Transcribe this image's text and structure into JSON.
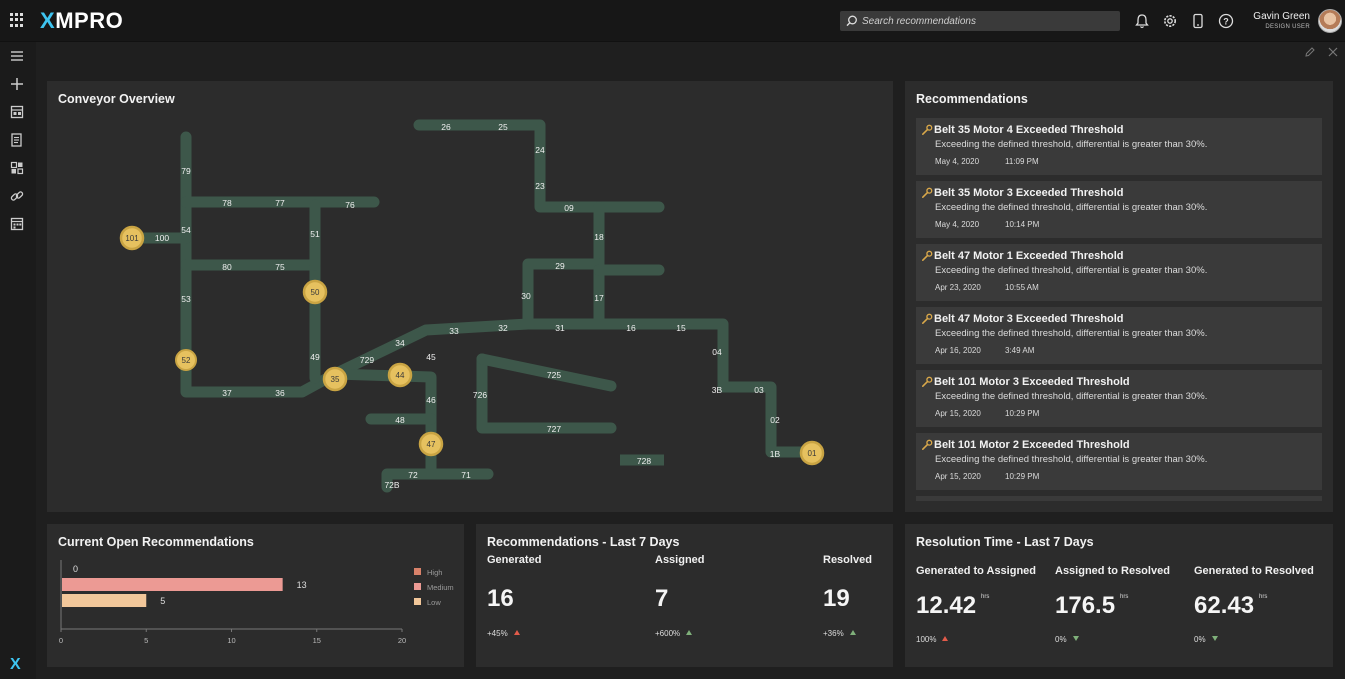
{
  "header": {
    "logo": "XMPRO",
    "search_placeholder": "Search recommendations",
    "user_name": "Gavin Green",
    "user_role": "DESIGN USER"
  },
  "icons": {
    "apps": "grid-icon",
    "search": "search-icon",
    "notifications": "bell-icon",
    "settings": "gear-icon",
    "device": "mobile-icon",
    "help": "help-icon",
    "edit": "pencil-icon",
    "close": "close-icon"
  },
  "sidebar": {
    "items": [
      "menu-icon",
      "add-icon",
      "dashboard-icon",
      "document-icon",
      "widgets-icon",
      "link-icon",
      "calendar-icon"
    ],
    "bottom_logo": "X"
  },
  "conveyor": {
    "title": "Conveyor Overview",
    "labels": [
      "26",
      "25",
      "24",
      "23",
      "09",
      "18",
      "29",
      "30",
      "17",
      "79",
      "78",
      "77",
      "76",
      "54",
      "51",
      "100",
      "80",
      "75",
      "53",
      "49",
      "34",
      "33",
      "32",
      "31",
      "16",
      "15",
      "04",
      "729",
      "45",
      "725",
      "726",
      "3B",
      "03",
      "37",
      "36",
      "46",
      "48",
      "727",
      "02",
      "72",
      "71",
      "728",
      "1B",
      "72B"
    ],
    "nodes": [
      "101",
      "50",
      "52",
      "35",
      "44",
      "47",
      "01"
    ]
  },
  "recommendations": {
    "title": "Recommendations",
    "items": [
      {
        "title": "Belt 35 Motor 4 Exceeded Threshold",
        "desc": "Exceeding the defined threshold, differential is greater than 30%.",
        "date": "May 4, 2020",
        "time": "11:09 PM"
      },
      {
        "title": "Belt 35 Motor 3 Exceeded Threshold",
        "desc": "Exceeding the defined threshold, differential is greater than 30%.",
        "date": "May 4, 2020",
        "time": "10:14 PM"
      },
      {
        "title": "Belt 47 Motor 1 Exceeded Threshold",
        "desc": "Exceeding the defined threshold, differential is greater than 30%.",
        "date": "Apr 23, 2020",
        "time": "10:55 AM"
      },
      {
        "title": "Belt 47 Motor 3 Exceeded Threshold",
        "desc": "Exceeding the defined threshold, differential is greater than 30%.",
        "date": "Apr 16, 2020",
        "time": "3:49 AM"
      },
      {
        "title": "Belt 101 Motor 3 Exceeded Threshold",
        "desc": "Exceeding the defined threshold, differential is greater than 30%.",
        "date": "Apr 15, 2020",
        "time": "10:29 PM"
      },
      {
        "title": "Belt 101 Motor 2 Exceeded Threshold",
        "desc": "Exceeding the defined threshold, differential is greater than 30%.",
        "date": "Apr 15, 2020",
        "time": "10:29 PM"
      }
    ]
  },
  "open_recs": {
    "title": "Current Open Recommendations",
    "chart_data": {
      "type": "bar",
      "orientation": "horizontal",
      "categories": [
        "High",
        "Medium",
        "Low"
      ],
      "values": [
        0,
        13,
        5
      ],
      "xlim": [
        0,
        20
      ],
      "xticks": [
        "0",
        "5",
        "10",
        "15",
        "20"
      ],
      "colors": [
        "#d9826a",
        "#ec9a94",
        "#f2c79a"
      ],
      "legend_position": "right"
    }
  },
  "last7": {
    "title": "Recommendations - Last 7 Days",
    "kpis": [
      {
        "label": "Generated",
        "value": "16",
        "change": "+45%",
        "trend": "up",
        "trend_color": "#e25b4a"
      },
      {
        "label": "Assigned",
        "value": "7",
        "change": "+600%",
        "trend": "up",
        "trend_color": "#7fb07a"
      },
      {
        "label": "Resolved",
        "value": "19",
        "change": "+36%",
        "trend": "up",
        "trend_color": "#7fb07a"
      }
    ]
  },
  "resolution": {
    "title": "Resolution Time - Last 7 Days",
    "unit": "hrs",
    "kpis": [
      {
        "label": "Generated to Assigned",
        "value": "12.42",
        "change": "100%",
        "trend": "up",
        "trend_color": "#e25b4a"
      },
      {
        "label": "Assigned to Resolved",
        "value": "176.5",
        "change": "0%",
        "trend": "down",
        "trend_color": "#7fb07a"
      },
      {
        "label": "Generated to Resolved",
        "value": "62.43",
        "change": "0%",
        "trend": "down",
        "trend_color": "#7fb07a"
      }
    ]
  },
  "colors": {
    "belt": "#3d574a",
    "node": "#e6c15f",
    "node_ring": "#c9a443"
  }
}
